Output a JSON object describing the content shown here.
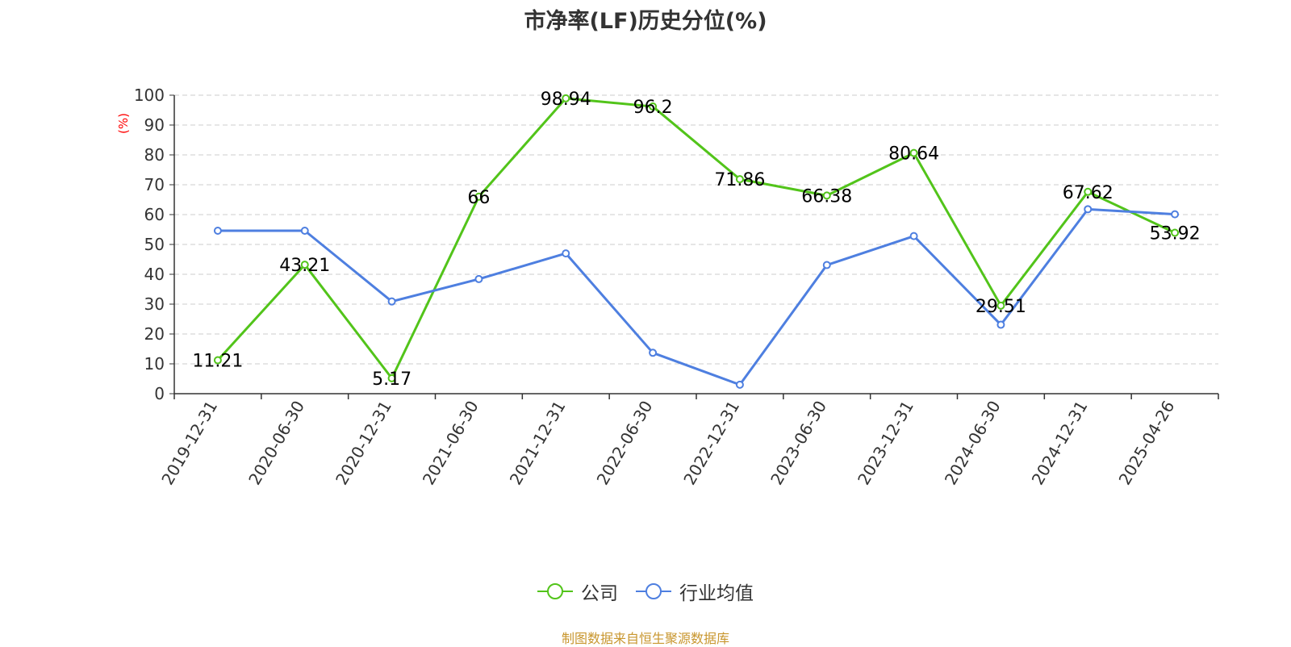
{
  "colors": {
    "company": "#52c41a",
    "industry": "#4e7fe0",
    "axis": "#333333",
    "grid": "#cccccc",
    "ylabel": "#ff0000",
    "source": "#c8962e"
  },
  "chart_data": {
    "type": "line",
    "title": "市净率(LF)历史分位(%)",
    "ylabel": "(%)",
    "xlabel": "",
    "ylim": [
      0,
      100
    ],
    "yticks": [
      0,
      10,
      20,
      30,
      40,
      50,
      60,
      70,
      80,
      90,
      100
    ],
    "grid": true,
    "legend_position": "bottom",
    "categories": [
      "2019-12-31",
      "2020-06-30",
      "2020-12-31",
      "2021-06-30",
      "2021-12-31",
      "2022-06-30",
      "2022-12-31",
      "2023-06-30",
      "2023-12-31",
      "2024-06-30",
      "2024-12-31",
      "2025-04-26"
    ],
    "series": [
      {
        "name": "公司",
        "color": "#52c41a",
        "values": [
          11.21,
          43.21,
          5.17,
          66,
          98.94,
          96.2,
          71.86,
          66.38,
          80.64,
          29.51,
          67.62,
          53.92
        ],
        "labels": [
          "11.21",
          "43.21",
          "5.17",
          "66",
          "98.94",
          "96.2",
          "71.86",
          "66.38",
          "80.64",
          "29.51",
          "67.62",
          "53.92"
        ]
      },
      {
        "name": "行业均值",
        "color": "#4e7fe0",
        "values": [
          54.6,
          54.6,
          30.9,
          38.4,
          47.0,
          13.7,
          3.0,
          43.1,
          52.8,
          23.1,
          61.8,
          60.1
        ]
      }
    ]
  },
  "source_note": "制图数据来自恒生聚源数据库"
}
